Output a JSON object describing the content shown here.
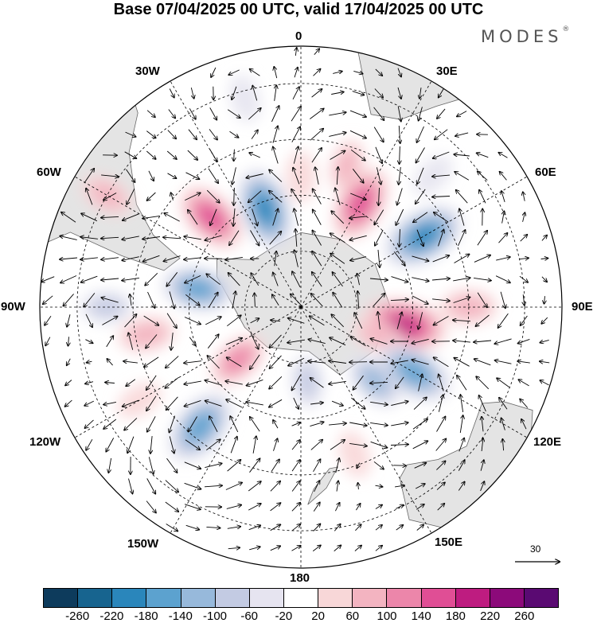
{
  "title": "Base 07/04/2025 00 UTC, valid 17/04/2025 00 UTC",
  "brand": {
    "name": "MODES",
    "mark": "®"
  },
  "longitude_labels": [
    "0",
    "30E",
    "60E",
    "90E",
    "120E",
    "150E",
    "180",
    "150W",
    "120W",
    "90W",
    "60W",
    "30W"
  ],
  "reference_vector": {
    "value": "30"
  },
  "colorbar": {
    "colors": [
      "#0d3b5c",
      "#17648f",
      "#2a86bb",
      "#5ca2cf",
      "#97b9db",
      "#c3cbe3",
      "#e6e4f0",
      "#ffffff",
      "#f8d7d8",
      "#f3b4c1",
      "#ec86aa",
      "#e04e95",
      "#be1c80",
      "#8c0a7a",
      "#5a0a72"
    ],
    "tick_labels": [
      "-260",
      "-220",
      "-180",
      "-140",
      "-100",
      "-60",
      "-20",
      "20",
      "60",
      "100",
      "140",
      "180",
      "220",
      "260"
    ]
  },
  "anomaly_fields": [
    {
      "lon": 0,
      "lat": -55,
      "value": 50
    },
    {
      "lon": 18,
      "lat": -50,
      "value": 60
    },
    {
      "lon": -20,
      "lat": -62,
      "value": -180
    },
    {
      "lon": -45,
      "lat": -56,
      "value": 150
    },
    {
      "lon": -15,
      "lat": -32,
      "value": -40
    },
    {
      "lon": 30,
      "lat": -58,
      "value": 160
    },
    {
      "lon": 45,
      "lat": -40,
      "value": -40
    },
    {
      "lon": 60,
      "lat": -52,
      "value": -190
    },
    {
      "lon": 90,
      "lat": -45,
      "value": 80
    },
    {
      "lon": 100,
      "lat": -62,
      "value": 200
    },
    {
      "lon": 110,
      "lat": -68,
      "value": 60
    },
    {
      "lon": 120,
      "lat": -55,
      "value": -170
    },
    {
      "lon": 135,
      "lat": -62,
      "value": -100
    },
    {
      "lon": 160,
      "lat": -48,
      "value": 40
    },
    {
      "lon": 175,
      "lat": -70,
      "value": -60
    },
    {
      "lon": -140,
      "lat": -48,
      "value": -170
    },
    {
      "lon": -120,
      "lat": -40,
      "value": 40
    },
    {
      "lon": -100,
      "lat": -48,
      "value": 80
    },
    {
      "lon": -80,
      "lat": -62,
      "value": -140
    },
    {
      "lon": -130,
      "lat": -68,
      "value": 100
    },
    {
      "lon": -60,
      "lat": -30,
      "value": 70
    },
    {
      "lon": -90,
      "lat": -38,
      "value": -60
    }
  ],
  "land_shading": [
    {
      "name": "antarctica"
    },
    {
      "name": "south-america"
    },
    {
      "name": "africa"
    },
    {
      "name": "australia"
    },
    {
      "name": "new-zealand"
    }
  ]
}
